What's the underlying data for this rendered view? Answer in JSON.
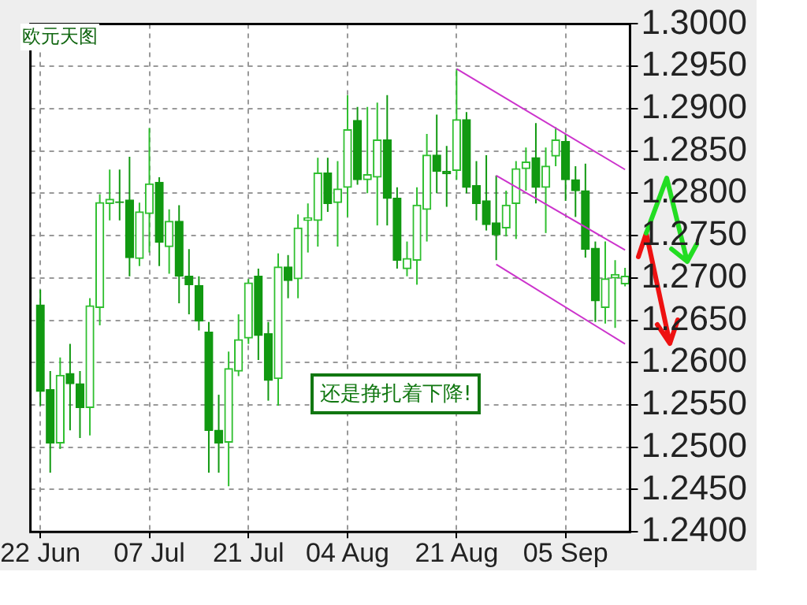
{
  "chart_data": {
    "type": "candlestick",
    "title": "欧元天图",
    "annotations": [
      "还是挣扎着下降!"
    ],
    "categories": [
      "22 Jun",
      null,
      null,
      null,
      null,
      null,
      null,
      null,
      null,
      null,
      null,
      "07 Jul",
      null,
      null,
      null,
      null,
      null,
      null,
      null,
      null,
      null,
      "21 Jul",
      null,
      null,
      null,
      null,
      null,
      null,
      null,
      null,
      null,
      "04 Aug",
      null,
      null,
      null,
      null,
      null,
      null,
      null,
      null,
      null,
      null,
      "21 Aug",
      null,
      null,
      null,
      null,
      null,
      null,
      null,
      null,
      null,
      null,
      "05 Sep",
      null,
      null,
      null,
      null,
      null,
      null
    ],
    "colors": [
      "#119911",
      "#119911",
      "#2fbf2f",
      "#119911",
      "#119911",
      "#2fbf2f",
      "#2fbf2f",
      "#2fbf2f",
      "#119911",
      "#119911",
      "#2fbf2f",
      "#2fbf2f",
      "#119911",
      "#2fbf2f",
      "#119911",
      "#119911",
      "#119911",
      "#119911",
      "#119911",
      "#2fbf2f",
      "#2fbf2f",
      "#2fbf2f",
      "#119911",
      "#119911",
      "#2fbf2f",
      "#119911",
      "#2fbf2f",
      "#2fbf2f",
      "#2fbf2f",
      "#119911",
      "#2fbf2f",
      "#2fbf2f",
      "#119911",
      "#2fbf2f",
      "#2fbf2f",
      "#119911",
      "#119911",
      "#2fbf2f",
      "#2fbf2f",
      "#2fbf2f",
      "#119911",
      "#119911",
      "#2fbf2f",
      "#119911",
      "#119911",
      "#119911",
      "#119911",
      "#2fbf2f",
      "#2fbf2f",
      "#2fbf2f",
      "#119911",
      "#2fbf2f",
      "#2fbf2f",
      "#119911",
      "#119911",
      "#119911",
      "#119911",
      "#2fbf2f",
      "#2fbf2f",
      "#2fbf2f"
    ],
    "ohlc": [
      [
        1.2668,
        1.2686,
        1.2549,
        1.2566
      ],
      [
        1.2568,
        1.259,
        1.247,
        1.2505
      ],
      [
        1.2505,
        1.2606,
        1.2498,
        1.2585
      ],
      [
        1.2587,
        1.2622,
        1.252,
        1.2575
      ],
      [
        1.2575,
        1.259,
        1.2511,
        1.2547
      ],
      [
        1.2547,
        1.2676,
        1.2514,
        1.2667
      ],
      [
        1.2665,
        1.2799,
        1.2644,
        1.2789
      ],
      [
        1.2788,
        1.2828,
        1.2768,
        1.2793
      ],
      [
        1.279,
        1.2828,
        1.2768,
        1.2789
      ],
      [
        1.2792,
        1.2843,
        1.2702,
        1.2724
      ],
      [
        1.2723,
        1.2789,
        1.2714,
        1.2778
      ],
      [
        1.2776,
        1.2877,
        1.273,
        1.2811
      ],
      [
        1.2813,
        1.2819,
        1.2714,
        1.2742
      ],
      [
        1.2737,
        1.2781,
        1.2705,
        1.2767
      ],
      [
        1.2767,
        1.2786,
        1.267,
        1.2702
      ],
      [
        1.2702,
        1.2734,
        1.2657,
        1.2692
      ],
      [
        1.2691,
        1.2702,
        1.2638,
        1.2649
      ],
      [
        1.2636,
        1.2648,
        1.247,
        1.252
      ],
      [
        1.252,
        1.2562,
        1.247,
        1.2505
      ],
      [
        1.2506,
        1.2613,
        1.2454,
        1.2593
      ],
      [
        1.259,
        1.2657,
        1.2584,
        1.2627
      ],
      [
        1.2629,
        1.2699,
        1.2622,
        1.2694
      ],
      [
        1.2702,
        1.2711,
        1.2603,
        1.2632
      ],
      [
        1.2634,
        1.2648,
        1.2555,
        1.2579
      ],
      [
        1.2581,
        1.2729,
        1.2549,
        1.2713
      ],
      [
        1.2713,
        1.2727,
        1.2676,
        1.2697
      ],
      [
        1.2699,
        1.2775,
        1.2676,
        1.2759
      ],
      [
        1.2768,
        1.2788,
        1.273,
        1.2771
      ],
      [
        1.2768,
        1.2842,
        1.2737,
        1.2824
      ],
      [
        1.2824,
        1.2842,
        1.2778,
        1.2788
      ],
      [
        1.2789,
        1.2838,
        1.2737,
        1.2805
      ],
      [
        1.2807,
        1.2916,
        1.2772,
        1.2875
      ],
      [
        1.2886,
        1.2902,
        1.281,
        1.2816
      ],
      [
        1.2816,
        1.2902,
        1.28,
        1.2822
      ],
      [
        1.2819,
        1.2907,
        1.2762,
        1.2863
      ],
      [
        1.2863,
        1.2916,
        1.2762,
        1.2794
      ],
      [
        1.2794,
        1.2807,
        1.2711,
        1.2721
      ],
      [
        1.2711,
        1.2743,
        1.2702,
        1.2723
      ],
      [
        1.2721,
        1.2807,
        1.2692,
        1.2786
      ],
      [
        1.2781,
        1.287,
        1.2743,
        1.2845
      ],
      [
        1.2845,
        1.2893,
        1.28,
        1.2826
      ],
      [
        1.2826,
        1.2856,
        1.2784,
        1.2823
      ],
      [
        1.2827,
        1.2947,
        1.2816,
        1.2887
      ],
      [
        1.2887,
        1.2896,
        1.28,
        1.2807
      ],
      [
        1.2809,
        1.2838,
        1.2768,
        1.2788
      ],
      [
        1.2791,
        1.2845,
        1.2756,
        1.2763
      ],
      [
        1.2765,
        1.2821,
        1.2721,
        1.2751
      ],
      [
        1.2759,
        1.2803,
        1.2749,
        1.2786
      ],
      [
        1.2788,
        1.2838,
        1.2746,
        1.2829
      ],
      [
        1.2829,
        1.2854,
        1.2803,
        1.2837
      ],
      [
        1.2842,
        1.2883,
        1.2788,
        1.2807
      ],
      [
        1.2807,
        1.2854,
        1.2753,
        1.2832
      ],
      [
        1.2844,
        1.2878,
        1.2832,
        1.2863
      ],
      [
        1.2861,
        1.287,
        1.2791,
        1.2816
      ],
      [
        1.2816,
        1.2832,
        1.2772,
        1.2803
      ],
      [
        1.2803,
        1.2835,
        1.2724,
        1.2734
      ],
      [
        1.2735,
        1.2743,
        1.2648,
        1.2673
      ],
      [
        1.2665,
        1.2743,
        1.2646,
        1.2699
      ],
      [
        1.27,
        1.2721,
        1.2641,
        1.2704
      ],
      [
        1.2693,
        1.2712,
        1.269,
        1.2702
      ]
    ],
    "series": [
      {
        "type": "line",
        "color": "#cc33cc",
        "values": [
          null,
          null,
          null,
          null,
          null,
          null,
          null,
          null,
          null,
          null,
          null,
          null,
          null,
          null,
          null,
          null,
          null,
          null,
          null,
          null,
          null,
          null,
          null,
          null,
          null,
          null,
          null,
          null,
          null,
          null,
          null,
          null,
          null,
          null,
          null,
          null,
          null,
          null,
          null,
          null,
          null,
          null,
          1.2947,
          null,
          null,
          null,
          null,
          null,
          null,
          null,
          null,
          null,
          null,
          null,
          null,
          null,
          null,
          null,
          null,
          1.2828
        ]
      },
      {
        "type": "line",
        "color": "#cc33cc",
        "values": [
          null,
          null,
          null,
          null,
          null,
          null,
          null,
          null,
          null,
          null,
          null,
          null,
          null,
          null,
          null,
          null,
          null,
          null,
          null,
          null,
          null,
          null,
          null,
          null,
          null,
          null,
          null,
          null,
          null,
          null,
          null,
          null,
          null,
          null,
          null,
          null,
          null,
          null,
          null,
          null,
          null,
          null,
          null,
          null,
          null,
          null,
          1.2821,
          null,
          null,
          null,
          null,
          null,
          null,
          null,
          null,
          null,
          null,
          null,
          null,
          1.2733
        ]
      },
      {
        "type": "line",
        "color": "#cc33cc",
        "values": [
          null,
          null,
          null,
          null,
          null,
          null,
          null,
          null,
          null,
          null,
          null,
          null,
          null,
          null,
          null,
          null,
          null,
          null,
          null,
          null,
          null,
          null,
          null,
          null,
          null,
          null,
          null,
          null,
          null,
          null,
          null,
          null,
          null,
          null,
          null,
          null,
          null,
          null,
          null,
          null,
          null,
          null,
          null,
          null,
          null,
          null,
          1.2716,
          null,
          null,
          null,
          null,
          null,
          null,
          null,
          null,
          null,
          null,
          null,
          null,
          1.2622
        ]
      }
    ],
    "ylim": [
      1.24,
      1.3
    ],
    "yticks": [
      {
        "value": 1.24,
        "label": "1.2400"
      },
      {
        "value": 1.245,
        "label": "1.2450"
      },
      {
        "value": 1.25,
        "label": "1.2500"
      },
      {
        "value": 1.255,
        "label": "1.2550"
      },
      {
        "value": 1.26,
        "label": "1.2600"
      },
      {
        "value": 1.265,
        "label": "1.2650"
      },
      {
        "value": 1.27,
        "label": "1.2700"
      },
      {
        "value": 1.275,
        "label": "1.2750"
      },
      {
        "value": 1.28,
        "label": "1.2800"
      },
      {
        "value": 1.285,
        "label": "1.2850"
      },
      {
        "value": 1.29,
        "label": "1.2900"
      },
      {
        "value": 1.295,
        "label": "1.2950"
      },
      {
        "value": 1.3,
        "label": "1.3000"
      }
    ],
    "grid": true,
    "legend": false
  }
}
